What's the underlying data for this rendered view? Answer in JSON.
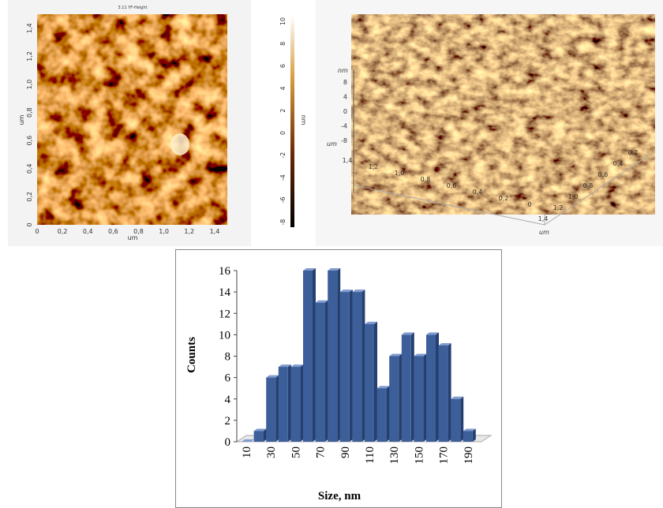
{
  "afm_2d": {
    "title": "3.11 YF-Height",
    "x_ticks": [
      "0",
      "0,2",
      "0,4",
      "0,6",
      "0,8",
      "1,0",
      "1,2",
      "1,4"
    ],
    "y_ticks": [
      "0",
      "0,2",
      "0,4",
      "0,6",
      "0,8",
      "1,0",
      "1,2",
      "1,4"
    ],
    "x_label": "um",
    "y_label": "um",
    "colorbar_ticks": [
      "10",
      "8",
      "6",
      "4",
      "2",
      "0",
      "-2",
      "-4",
      "-6",
      "-8"
    ],
    "colorbar_label": "nm"
  },
  "afm_3d": {
    "z_label": "nm",
    "z_ticks": [
      "8",
      "4",
      "0",
      "-4",
      "-8"
    ],
    "left_axis_label": "um",
    "left_ticks": [
      "1,4",
      "1,2",
      "1,0",
      "0,8",
      "0,6",
      "0,4",
      "0,2",
      "0"
    ],
    "right_ticks": [
      "1,4",
      "1,2",
      "1,0",
      "0,8",
      "0,6",
      "0,4",
      "0,2"
    ],
    "right_axis_label": "um"
  },
  "chart_data": {
    "type": "bar",
    "x_label": "Size,  nm",
    "y_label": "Counts",
    "categories": [
      "10",
      null,
      "30",
      null,
      "50",
      null,
      "70",
      null,
      "90",
      null,
      "110",
      null,
      "130",
      null,
      "150",
      null,
      "170",
      null,
      "190"
    ],
    "values": [
      0,
      1,
      6,
      7,
      7,
      16,
      13,
      16,
      14,
      14,
      11,
      5,
      8,
      10,
      8,
      10,
      9,
      4,
      1
    ],
    "color": "#3d5f99",
    "ylim": [
      0,
      16
    ],
    "yticks": [
      0,
      2,
      4,
      6,
      8,
      10,
      12,
      14,
      16
    ]
  }
}
